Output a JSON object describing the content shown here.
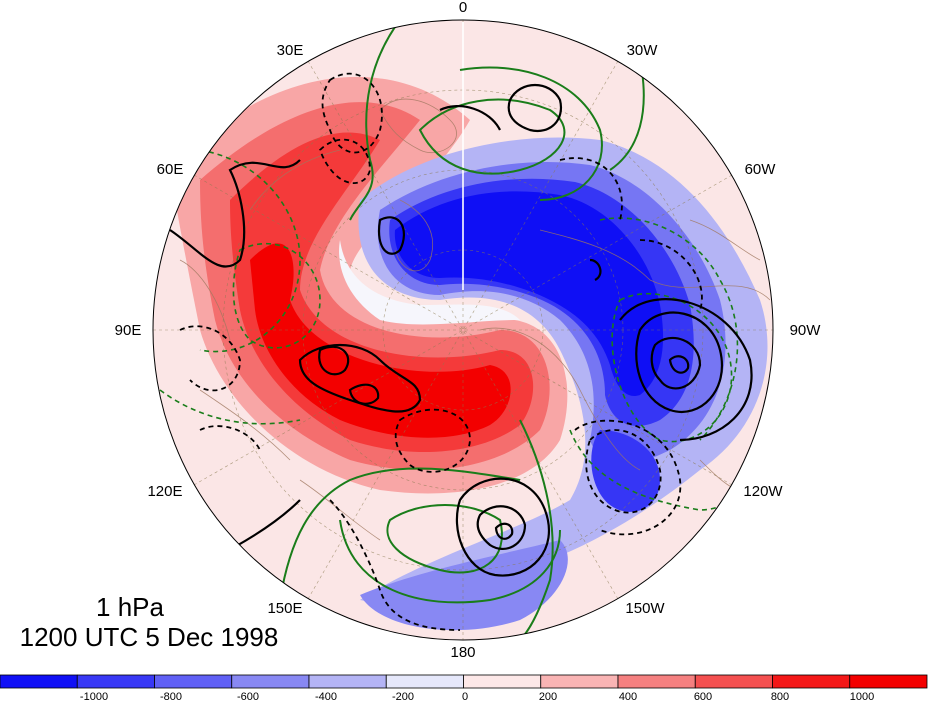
{
  "map": {
    "longitude_labels": [
      {
        "text": "0"
      },
      {
        "text": "30W"
      },
      {
        "text": "60W"
      },
      {
        "text": "90W"
      },
      {
        "text": "120W"
      },
      {
        "text": "150W"
      },
      {
        "text": "180"
      },
      {
        "text": "150E"
      },
      {
        "text": "120E"
      },
      {
        "text": "90E"
      },
      {
        "text": "60E"
      },
      {
        "text": "30E"
      }
    ],
    "level": "1 hPa",
    "timestamp": "1200 UTC 5 Dec 1998"
  },
  "colorbar": {
    "tick_labels": [
      "-1000",
      "-800",
      "-600",
      "-400",
      "-200",
      "0",
      "200",
      "400",
      "600",
      "800",
      "1000"
    ],
    "colors": [
      "#1010f5",
      "#3838f5",
      "#6060f5",
      "#8888f3",
      "#b4b4f5",
      "#e6e8fb",
      "#fde8e8",
      "#f9b4b4",
      "#f58080",
      "#f45050",
      "#f41818",
      "#f30000"
    ]
  }
}
